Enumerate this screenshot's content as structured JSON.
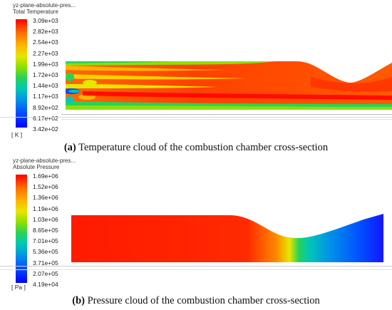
{
  "panels": [
    {
      "id": "a",
      "plane_label": "yz-plane-absolute-pres...",
      "variable": "Total Temperature",
      "unit": "[ K ]",
      "ticks": [
        "3.09e+03",
        "2.82e+03",
        "2.54e+03",
        "2.27e+03",
        "1.99e+03",
        "1.72e+03",
        "1.44e+03",
        "1.17e+03",
        "8.92e+02",
        "6.17e+02",
        "3.42e+02"
      ],
      "caption_label": "(a)",
      "caption_text": " Temperature cloud of the combustion chamber cross-section"
    },
    {
      "id": "b",
      "plane_label": "yz-plane-absolute-pres...",
      "variable": "Absolute Pressure",
      "unit": "[ Pa ]",
      "ticks": [
        "1.69e+06",
        "1.52e+06",
        "1.36e+06",
        "1.19e+06",
        "1.03e+06",
        "8.65e+05",
        "7.01e+05",
        "5.36e+05",
        "3.71e+05",
        "2.07e+05",
        "4.19e+04"
      ],
      "caption_label": "(b)",
      "caption_text": " Pressure cloud of the combustion chamber cross-section"
    }
  ],
  "colormap": [
    "#ff0000",
    "#ff6a00",
    "#ffb400",
    "#e6e600",
    "#8fe000",
    "#28d25a",
    "#00c8b4",
    "#0096e6",
    "#0050ff",
    "#0000ff"
  ]
}
